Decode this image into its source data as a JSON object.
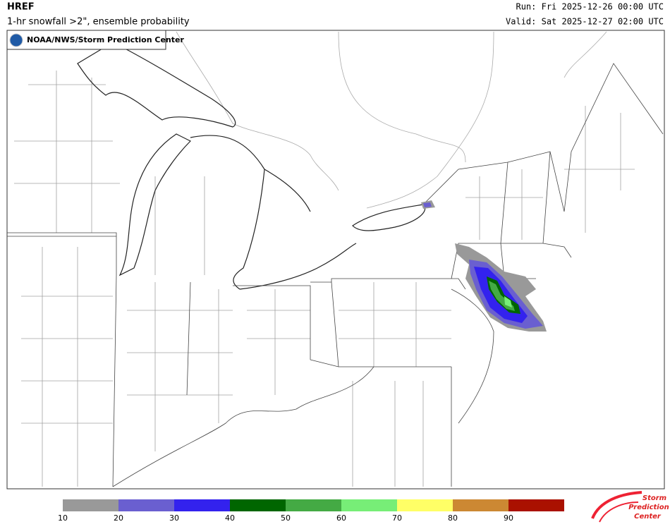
{
  "header": {
    "model": "HREF",
    "product": "1-hr snowfall >2\", ensemble probability",
    "run": "Run: Fri 2025-12-26 00:00 UTC",
    "valid": "Valid: Sat 2025-12-27 02:00 UTC"
  },
  "map": {
    "credit": "NOAA/NWS/Storm Prediction Center"
  },
  "legend": {
    "ticks": [
      10,
      20,
      30,
      40,
      50,
      60,
      70,
      80,
      90
    ],
    "colors": [
      "#999999",
      "#6a5fd0",
      "#3322ee",
      "#006600",
      "#44aa44",
      "#77ee77",
      "#ffff66",
      "#cc8833",
      "#aa1100"
    ]
  },
  "logo": {
    "line1": "Storm",
    "line2": "Prediction",
    "line3": "Center"
  }
}
